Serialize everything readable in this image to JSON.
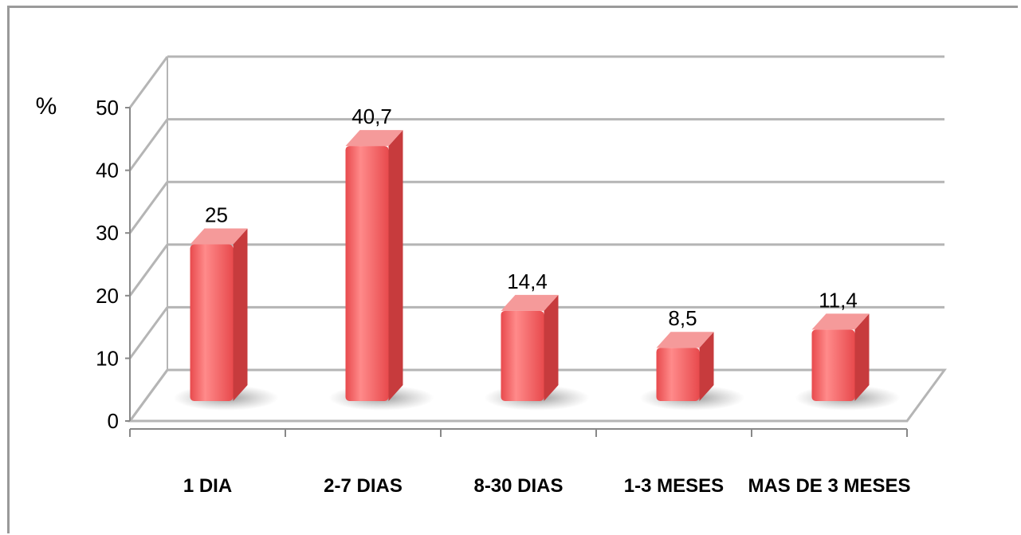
{
  "chart_data": {
    "type": "bar",
    "title": "",
    "xlabel": "",
    "ylabel": "%",
    "ylim": [
      0,
      50
    ],
    "yticks": [
      0,
      10,
      20,
      30,
      40,
      50
    ],
    "categories": [
      "1 DIA",
      "2-7 DIAS",
      "8-30 DIAS",
      "1-3 MESES",
      "MAS DE 3 MESES"
    ],
    "values": [
      25,
      40.7,
      14.4,
      8.5,
      11.4
    ],
    "data_labels": [
      "25",
      "40,7",
      "14,4",
      "8,5",
      "11,4"
    ],
    "grid": true,
    "legend": "none",
    "bar_color": "#f0575a",
    "bar_top_color": "#f59a9a",
    "bar_side_color": "#c73b3d"
  }
}
